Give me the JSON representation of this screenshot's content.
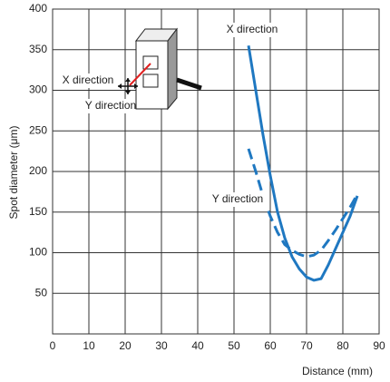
{
  "chart_data": {
    "type": "line",
    "x_label": "Distance (mm)",
    "y_label": "Spot diameter (μm)",
    "x": [
      54,
      56,
      58,
      60,
      62,
      64,
      66,
      68,
      70,
      72,
      74,
      76,
      78,
      80,
      82,
      84
    ],
    "series": [
      {
        "name": "X direction",
        "color": "#1f78c1",
        "dashed": false,
        "values": [
          355,
          300,
          245,
          195,
          150,
          118,
          95,
          80,
          70,
          66,
          68,
          85,
          105,
          125,
          145,
          170
        ]
      },
      {
        "name": "Y direction",
        "color": "#1f78c1",
        "dashed": true,
        "values": [
          228,
          200,
          170,
          145,
          125,
          110,
          103,
          98,
          95,
          97,
          103,
          115,
          128,
          142,
          156,
          172
        ]
      }
    ],
    "inset_labels": [
      "X direction",
      "Y direction"
    ],
    "xlim": [
      0,
      90
    ],
    "xticks": [
      0,
      10,
      20,
      30,
      40,
      50,
      60,
      70,
      80,
      90
    ],
    "ylim": [
      0,
      400
    ],
    "yticks": [
      50,
      100,
      150,
      200,
      250,
      300,
      350,
      400
    ],
    "grid": true
  }
}
